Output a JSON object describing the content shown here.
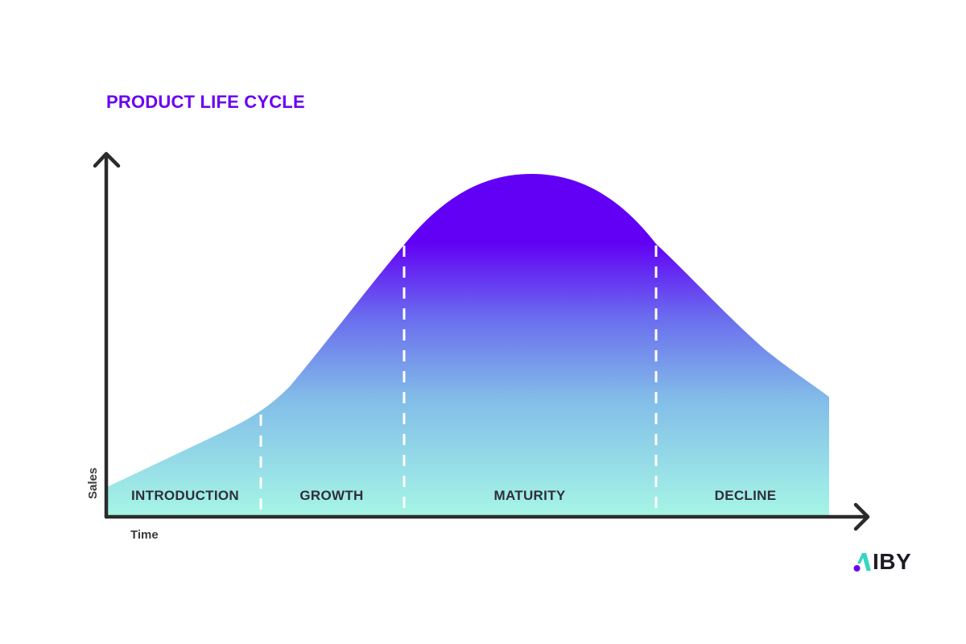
{
  "title": "PRODUCT LIFE CYCLE",
  "axes": {
    "y_label": "Sales",
    "x_label": "Time"
  },
  "stages": [
    {
      "label": "INTRODUCTION"
    },
    {
      "label": "GROWTH"
    },
    {
      "label": "MATURITY"
    },
    {
      "label": "DECLINE"
    }
  ],
  "colors": {
    "title": "#6a00f4",
    "curve_top": "#6200f5",
    "curve_bottom": "#a6f5e6",
    "axis": "#2b2b2b",
    "divider": "#ffffff",
    "logo_accent_purple": "#6a00f4",
    "logo_accent_teal": "#35d6c4"
  },
  "logo": {
    "text": "IBY",
    "icon": "niby-logo-mark"
  }
}
